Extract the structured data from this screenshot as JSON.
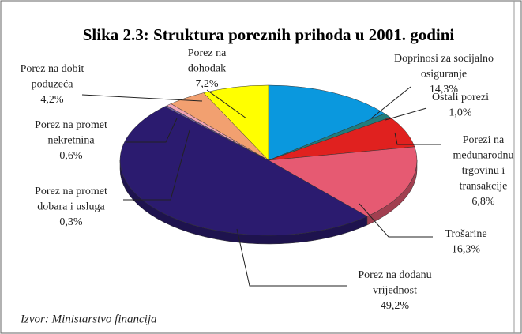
{
  "chart_data": {
    "type": "pie3d",
    "title": "Slika 2.3: Struktura poreznih prihoda u 2001. godini",
    "source": "Izvor: Ministarstvo financija",
    "categories": [
      [
        "Doprinosi za socijalno",
        "osiguranje"
      ],
      [
        "Ostali porezi"
      ],
      [
        "Porezi na",
        "međunarodnu",
        "trgovinu i",
        "transakcije"
      ],
      [
        "Trošarine"
      ],
      [
        "Porez na dodanu",
        "vrijednost"
      ],
      [
        "Porez na promet",
        "dobara i usluga"
      ],
      [
        "Porez na promet",
        "nekretnina"
      ],
      [
        "Porez na dobit",
        "poduzeća"
      ],
      [
        "Porez na",
        "dohodak"
      ]
    ],
    "values": [
      14.3,
      1.0,
      6.8,
      16.3,
      49.2,
      0.3,
      0.6,
      4.2,
      7.2
    ],
    "value_labels": [
      "14,3%",
      "1,0%",
      "6,8%",
      "16,3%",
      "49,2%",
      "0,3%",
      "0,6%",
      "4,2%",
      "7,2%"
    ],
    "colors": [
      "#0a98de",
      "#217c7c",
      "#e0211f",
      "#e65a72",
      "#2b1b6f",
      "#6e5fa2",
      "#f0a4b4",
      "#f2a070",
      "#ffff00"
    ]
  }
}
